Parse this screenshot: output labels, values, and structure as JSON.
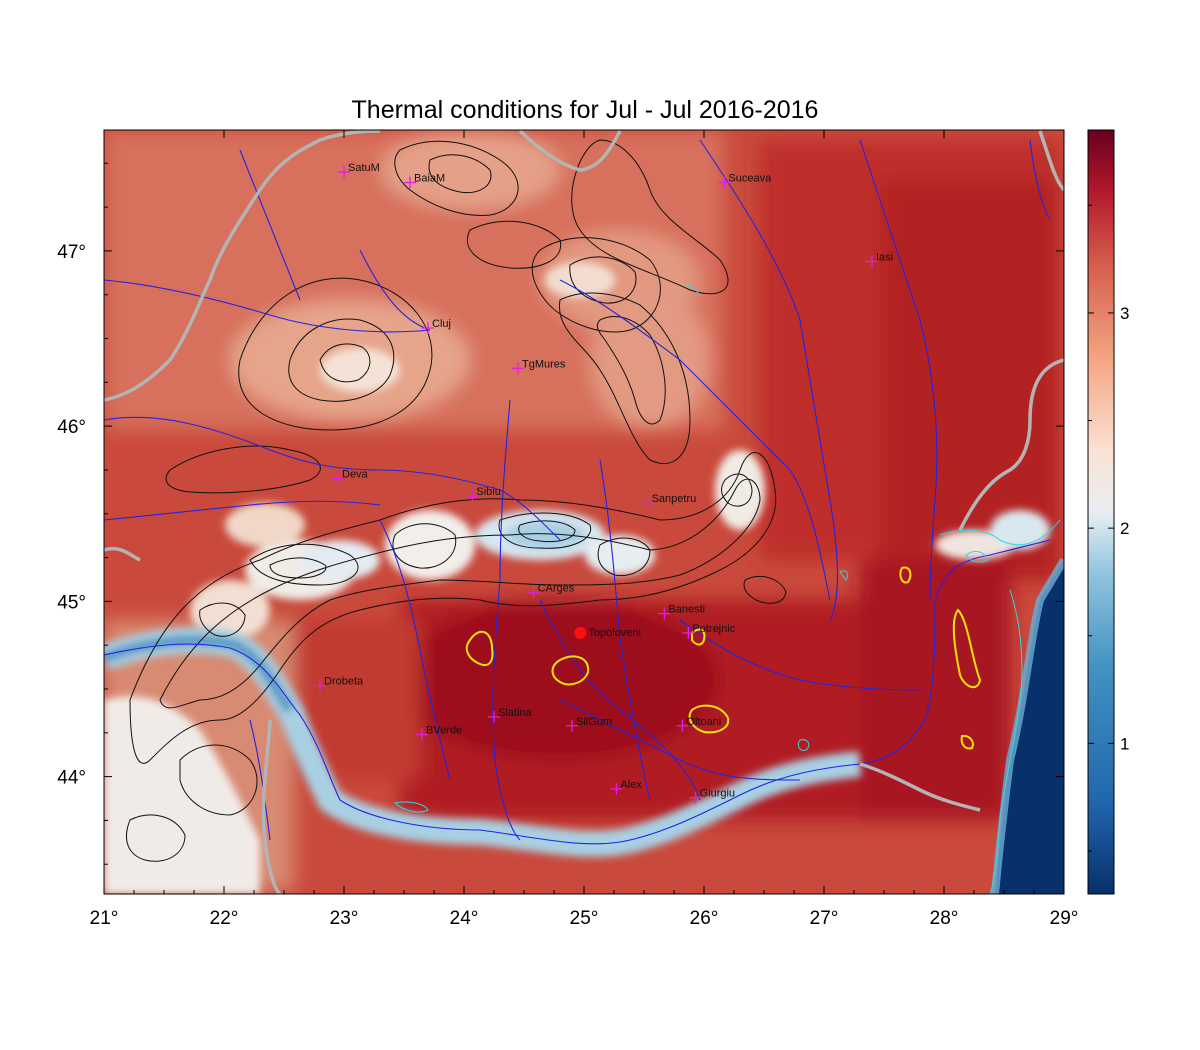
{
  "title": "Thermal conditions for Jul - Jul  2016-2016",
  "map": {
    "lon_range": [
      21,
      29
    ],
    "lat_range": [
      43.33,
      47.69
    ],
    "lon_ticks": [
      {
        "value": 21,
        "label": "21°"
      },
      {
        "value": 22,
        "label": "22°"
      },
      {
        "value": 23,
        "label": "23°"
      },
      {
        "value": 24,
        "label": "24°"
      },
      {
        "value": 25,
        "label": "25°"
      },
      {
        "value": 26,
        "label": "26°"
      },
      {
        "value": 27,
        "label": "27°"
      },
      {
        "value": 28,
        "label": "28°"
      },
      {
        "value": 29,
        "label": "29°"
      }
    ],
    "lat_ticks": [
      {
        "value": 44,
        "label": "44°"
      },
      {
        "value": 45,
        "label": "45°"
      },
      {
        "value": 46,
        "label": "46°"
      },
      {
        "value": 47,
        "label": "47°"
      }
    ],
    "cities": [
      {
        "name": "SatuM",
        "lon": 23.0,
        "lat": 47.45
      },
      {
        "name": "BaiaM",
        "lon": 23.55,
        "lat": 47.39
      },
      {
        "name": "Suceava",
        "lon": 26.17,
        "lat": 47.39
      },
      {
        "name": "Iasi",
        "lon": 27.4,
        "lat": 46.94
      },
      {
        "name": "Cluj",
        "lon": 23.7,
        "lat": 46.56
      },
      {
        "name": "TgMures",
        "lon": 24.45,
        "lat": 46.33
      },
      {
        "name": "Deva",
        "lon": 22.95,
        "lat": 45.7
      },
      {
        "name": "Sibiu",
        "lon": 24.07,
        "lat": 45.6
      },
      {
        "name": "Sanpetru",
        "lon": 25.53,
        "lat": 45.56
      },
      {
        "name": "CArges",
        "lon": 24.58,
        "lat": 45.05
      },
      {
        "name": "Banesti",
        "lon": 25.67,
        "lat": 44.93
      },
      {
        "name": "Potrejnic",
        "lon": 25.87,
        "lat": 44.82
      },
      {
        "name": "Drobeta",
        "lon": 22.8,
        "lat": 44.52
      },
      {
        "name": "Slatina",
        "lon": 24.25,
        "lat": 44.34
      },
      {
        "name": "SilGum",
        "lon": 24.9,
        "lat": 44.29
      },
      {
        "name": "Oltoani",
        "lon": 25.82,
        "lat": 44.29
      },
      {
        "name": "BVerde",
        "lon": 23.65,
        "lat": 44.24
      },
      {
        "name": "Alex",
        "lon": 25.27,
        "lat": 43.93
      },
      {
        "name": "Giurgiu",
        "lon": 25.93,
        "lat": 43.88
      }
    ],
    "highlight_point": {
      "name": "Topoloveni",
      "lon": 24.97,
      "lat": 44.82
    }
  },
  "colorbar": {
    "ticks": [
      {
        "value": 1,
        "label": "1"
      },
      {
        "value": 2,
        "label": "2"
      },
      {
        "value": 3,
        "label": "3"
      }
    ],
    "range": [
      0.3,
      3.85
    ]
  },
  "colors": {
    "hot": "#b0161e",
    "warm": "#d6604d",
    "neutral": "#f2f0ee",
    "cool": "#92c5de",
    "cold": "#08467f",
    "river": "#2a2ad8",
    "border": "#b4b4b4",
    "city_marker": "#e020e0",
    "highlight": "#ff1010",
    "yellow_contour": "#f5e20a",
    "cyan_contour": "#30d8e0"
  }
}
